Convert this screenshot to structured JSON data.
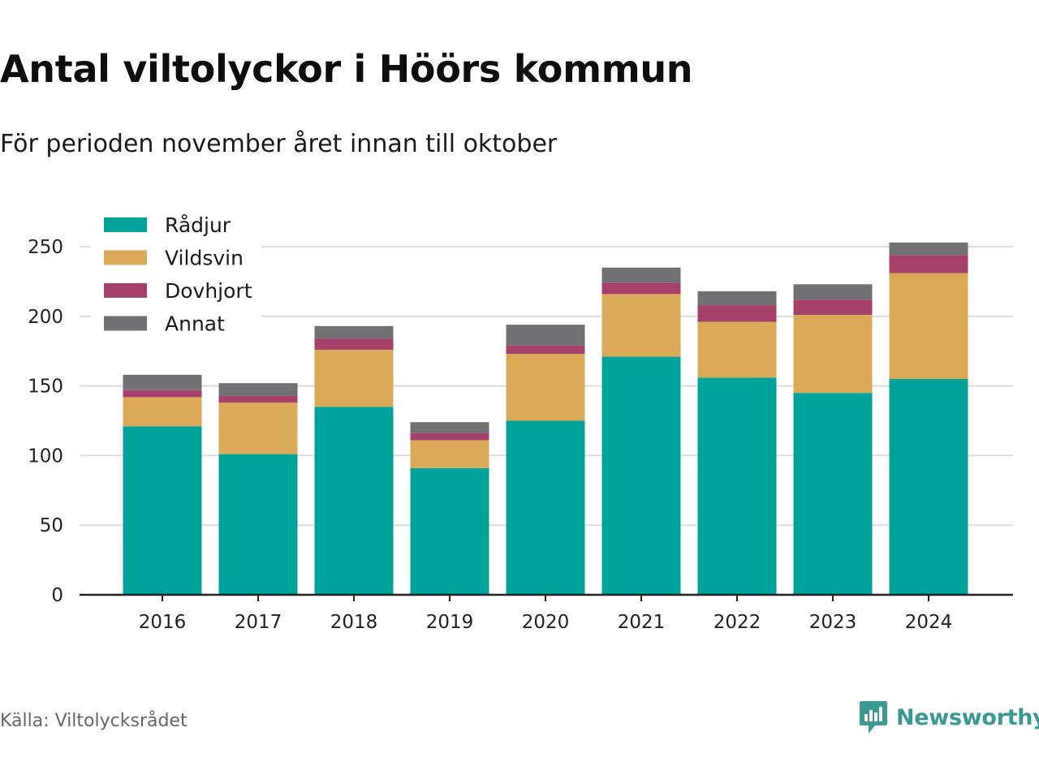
{
  "header": {
    "title": "Antal viltolyckor i Höörs kommun",
    "subtitle": "För perioden november året innan till oktober"
  },
  "footer": {
    "source": "Källa: Viltolycksrådet",
    "brand": "Newsworthy"
  },
  "icons": {
    "brand_logo": "bar-chart-speech-bubble-icon"
  },
  "chart_data": {
    "type": "bar",
    "stacked": true,
    "title": "",
    "xlabel": "",
    "ylabel": "",
    "categories": [
      "2016",
      "2017",
      "2018",
      "2019",
      "2020",
      "2021",
      "2022",
      "2023",
      "2024"
    ],
    "series": [
      {
        "name": "Rådjur",
        "color": "#00a39a",
        "values": [
          121,
          101,
          135,
          91,
          125,
          171,
          156,
          145,
          155
        ]
      },
      {
        "name": "Vildsvin",
        "color": "#dbaa58",
        "values": [
          21,
          37,
          41,
          20,
          48,
          45,
          40,
          56,
          76
        ]
      },
      {
        "name": "Dovhjort",
        "color": "#a5416a",
        "values": [
          5,
          5,
          8,
          5,
          6,
          8,
          12,
          11,
          13
        ]
      },
      {
        "name": "Annat",
        "color": "#717073",
        "values": [
          11,
          9,
          9,
          8,
          15,
          11,
          10,
          11,
          9
        ]
      }
    ],
    "ylim": [
      0,
      260
    ],
    "yticks": [
      0,
      50,
      100,
      150,
      200,
      250
    ],
    "grid": true,
    "legend_position": "top-left"
  }
}
